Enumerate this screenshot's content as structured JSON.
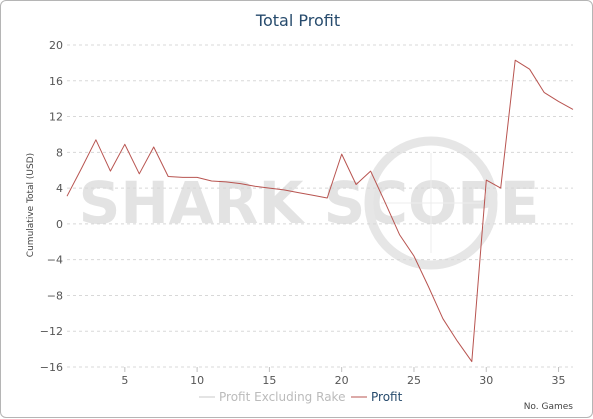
{
  "colors": {
    "profit": "#b85450",
    "profit_excl_rake": "#c8c8c8",
    "title": "#274b6d",
    "grid": "#d8d8d8"
  },
  "chart_data": {
    "type": "line",
    "title": "Total Profit",
    "xlabel": "No. Games",
    "ylabel": "Cumulative Total (USD)",
    "xlim": [
      1,
      36
    ],
    "ylim": [
      -16,
      20
    ],
    "yticks": [
      "20",
      "16",
      "12",
      "8",
      "4",
      "0",
      "−4",
      "−8",
      "−12",
      "−16"
    ],
    "ytick_values": [
      20,
      16,
      12,
      8,
      4,
      0,
      -4,
      -8,
      -12,
      -16
    ],
    "xticks": [
      "5",
      "10",
      "15",
      "20",
      "25",
      "30",
      "35"
    ],
    "xtick_values": [
      5,
      10,
      15,
      20,
      25,
      30,
      35
    ],
    "grid": true,
    "legend_position": "bottom-center",
    "watermark": "SHARK SCOPE",
    "series": [
      {
        "name": "Profit Excluding Rake",
        "visible": false,
        "x": [],
        "y": []
      },
      {
        "name": "Profit",
        "visible": true,
        "x": [
          1,
          2,
          3,
          4,
          5,
          6,
          7,
          8,
          9,
          10,
          11,
          12,
          13,
          14,
          15,
          16,
          17,
          18,
          19,
          20,
          21,
          22,
          23,
          24,
          25,
          26,
          27,
          28,
          29,
          30,
          31,
          32,
          33,
          34,
          35,
          36
        ],
        "y": [
          3.1,
          6.2,
          9.4,
          5.9,
          8.9,
          5.6,
          8.6,
          5.3,
          5.2,
          5.2,
          4.8,
          4.7,
          4.5,
          4.2,
          4.0,
          3.8,
          3.5,
          3.2,
          2.9,
          7.8,
          4.4,
          5.9,
          2.4,
          -1.2,
          -3.6,
          -7.0,
          -10.6,
          -13.1,
          -15.4,
          4.9,
          4.0,
          18.3,
          17.3,
          14.7,
          13.7,
          12.8
        ]
      }
    ]
  },
  "legend": {
    "items": [
      {
        "label": "Profit Excluding Rake"
      },
      {
        "label": "Profit"
      }
    ]
  }
}
